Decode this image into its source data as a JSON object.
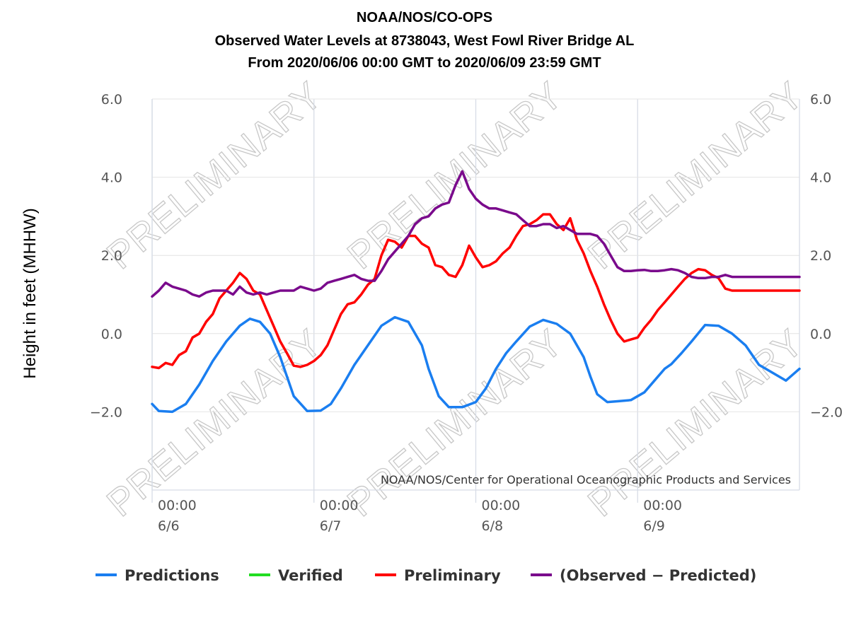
{
  "header": {
    "line1": "NOAA/NOS/CO-OPS",
    "line2": "Observed Water Levels at 8738043, West Fowl River Bridge AL",
    "line3": "From 2020/06/06 00:00 GMT to 2020/06/09 23:59 GMT"
  },
  "watermark_text": "PRELIMINARY",
  "credit": "NOAA/NOS/Center for Operational Oceanographic Products and Services",
  "chart_data": {
    "type": "line",
    "title": "NOAA/NOS/CO-OPS Observed Water Levels at 8738043, West Fowl River Bridge AL From 2020/06/06 00:00 GMT to 2020/06/09 23:59 GMT",
    "ylabel": "Height in feet (MHHW)",
    "xlabel": "",
    "ylim": [
      -4.0,
      6.0
    ],
    "xlim_hours": [
      0,
      96
    ],
    "y_ticks": [
      {
        "value": -2.0,
        "label": "−2.0"
      },
      {
        "value": 0.0,
        "label": "0.0"
      },
      {
        "value": 2.0,
        "label": "2.0"
      },
      {
        "value": 4.0,
        "label": "4.0"
      },
      {
        "value": 6.0,
        "label": "6.0"
      }
    ],
    "x_ticks": [
      {
        "hour": 0,
        "time": "00:00",
        "date": "6/6"
      },
      {
        "hour": 24,
        "time": "00:00",
        "date": "6/7"
      },
      {
        "hour": 48,
        "time": "00:00",
        "date": "6/8"
      },
      {
        "hour": 72,
        "time": "00:00",
        "date": "6/9"
      }
    ],
    "grid": true,
    "legend_position": "bottom",
    "series": [
      {
        "name": "Predictions",
        "color": "#1a7ef0",
        "x": [
          0,
          1,
          3,
          5,
          7,
          9,
          11,
          13,
          14.5,
          16,
          17.5,
          19,
          21,
          23,
          25,
          26.5,
          28,
          30,
          32,
          34,
          36,
          38,
          40,
          41,
          42.5,
          44,
          46,
          48,
          49.5,
          51,
          52.5,
          54,
          56,
          58,
          60,
          62,
          64,
          65,
          66,
          67.5,
          69,
          71,
          73,
          74.5,
          76,
          77,
          78.5,
          80,
          82,
          84,
          86,
          88,
          90,
          92,
          94,
          96
        ],
        "values": [
          -1.8,
          -1.98,
          -2.0,
          -1.8,
          -1.3,
          -0.7,
          -0.2,
          0.2,
          0.38,
          0.3,
          0.0,
          -0.6,
          -1.6,
          -1.98,
          -1.97,
          -1.8,
          -1.4,
          -0.8,
          -0.3,
          0.2,
          0.42,
          0.3,
          -0.3,
          -0.9,
          -1.6,
          -1.88,
          -1.88,
          -1.75,
          -1.4,
          -0.9,
          -0.5,
          -0.2,
          0.18,
          0.35,
          0.25,
          0.0,
          -0.6,
          -1.1,
          -1.55,
          -1.75,
          -1.73,
          -1.7,
          -1.5,
          -1.2,
          -0.9,
          -0.78,
          -0.5,
          -0.2,
          0.22,
          0.2,
          0.0,
          -0.3,
          -0.8,
          -1.0,
          -1.2,
          -0.9
        ]
      },
      {
        "name": "Verified",
        "color": "#22dd22",
        "x": [],
        "values": []
      },
      {
        "name": "Preliminary",
        "color": "#ff0000",
        "x": [
          0,
          1,
          2,
          3,
          4,
          5,
          6,
          7,
          8,
          9,
          10,
          11,
          12,
          13,
          14,
          15,
          16,
          17,
          18,
          19,
          20,
          21,
          22,
          23,
          24,
          25,
          26,
          27,
          28,
          29,
          30,
          31,
          32,
          33,
          34,
          35,
          36,
          37,
          38,
          39,
          40,
          41,
          42,
          43,
          44,
          45,
          46,
          47,
          48,
          49,
          50,
          51,
          52,
          53,
          54,
          55,
          56,
          57,
          58,
          59,
          60,
          61,
          62,
          63,
          64,
          65,
          66,
          67,
          68,
          69,
          70,
          71,
          72,
          73,
          74,
          75,
          76,
          77,
          78,
          79,
          80,
          81,
          82,
          83,
          84,
          85,
          86,
          87,
          88,
          89,
          90,
          91,
          92,
          93,
          94,
          95,
          96
        ],
        "values": [
          -0.85,
          -0.88,
          -0.75,
          -0.8,
          -0.55,
          -0.45,
          -0.1,
          0.0,
          0.3,
          0.5,
          0.9,
          1.1,
          1.3,
          1.55,
          1.4,
          1.1,
          1.0,
          0.6,
          0.2,
          -0.2,
          -0.5,
          -0.82,
          -0.85,
          -0.8,
          -0.7,
          -0.55,
          -0.3,
          0.1,
          0.5,
          0.75,
          0.8,
          1.0,
          1.25,
          1.4,
          2.0,
          2.4,
          2.35,
          2.2,
          2.5,
          2.5,
          2.3,
          2.2,
          1.75,
          1.7,
          1.5,
          1.45,
          1.75,
          2.25,
          1.95,
          1.7,
          1.75,
          1.85,
          2.05,
          2.2,
          2.5,
          2.75,
          2.8,
          2.9,
          3.05,
          3.05,
          2.8,
          2.65,
          2.95,
          2.4,
          2.05,
          1.6,
          1.2,
          0.75,
          0.35,
          0.0,
          -0.2,
          -0.15,
          -0.1,
          0.15,
          0.35,
          0.6,
          0.8,
          1.0,
          1.2,
          1.4,
          1.55,
          1.65,
          1.62,
          1.5,
          1.42,
          1.15,
          1.1,
          1.1,
          1.1,
          1.1,
          1.1,
          1.1,
          1.1,
          1.1,
          1.1,
          1.1,
          1.1
        ]
      },
      {
        "name": "(Observed − Predicted)",
        "color": "#7a0a8c",
        "x": [
          0,
          1,
          2,
          3,
          4,
          5,
          6,
          7,
          8,
          9,
          10,
          11,
          12,
          13,
          14,
          15,
          16,
          17,
          18,
          19,
          20,
          21,
          22,
          23,
          24,
          25,
          26,
          27,
          28,
          29,
          30,
          31,
          32,
          33,
          34,
          35,
          36,
          37,
          38,
          39,
          40,
          41,
          42,
          43,
          44,
          45,
          46,
          47,
          48,
          49,
          50,
          51,
          52,
          53,
          54,
          55,
          56,
          57,
          58,
          59,
          60,
          61,
          62,
          63,
          64,
          65,
          66,
          67,
          68,
          69,
          70,
          71,
          72,
          73,
          74,
          75,
          76,
          77,
          78,
          79,
          80,
          81,
          82,
          83,
          84,
          85,
          86,
          87,
          88,
          89,
          90,
          91,
          92,
          93,
          94,
          95,
          96
        ],
        "values": [
          0.95,
          1.1,
          1.3,
          1.2,
          1.15,
          1.1,
          1.0,
          0.95,
          1.05,
          1.1,
          1.1,
          1.1,
          1.0,
          1.2,
          1.05,
          1.0,
          1.05,
          1.0,
          1.05,
          1.1,
          1.1,
          1.1,
          1.2,
          1.15,
          1.1,
          1.15,
          1.3,
          1.35,
          1.4,
          1.45,
          1.5,
          1.4,
          1.35,
          1.35,
          1.6,
          1.9,
          2.1,
          2.3,
          2.5,
          2.8,
          2.95,
          3.0,
          3.2,
          3.3,
          3.35,
          3.8,
          4.15,
          3.7,
          3.45,
          3.3,
          3.2,
          3.2,
          3.15,
          3.1,
          3.05,
          2.9,
          2.75,
          2.75,
          2.8,
          2.8,
          2.7,
          2.75,
          2.65,
          2.55,
          2.55,
          2.55,
          2.5,
          2.3,
          2.0,
          1.7,
          1.6,
          1.6,
          1.62,
          1.63,
          1.6,
          1.6,
          1.62,
          1.65,
          1.62,
          1.55,
          1.45,
          1.42,
          1.42,
          1.45,
          1.45,
          1.5,
          1.45,
          1.45,
          1.45,
          1.45,
          1.45,
          1.45,
          1.45,
          1.45,
          1.45,
          1.45,
          1.45
        ]
      }
    ]
  }
}
